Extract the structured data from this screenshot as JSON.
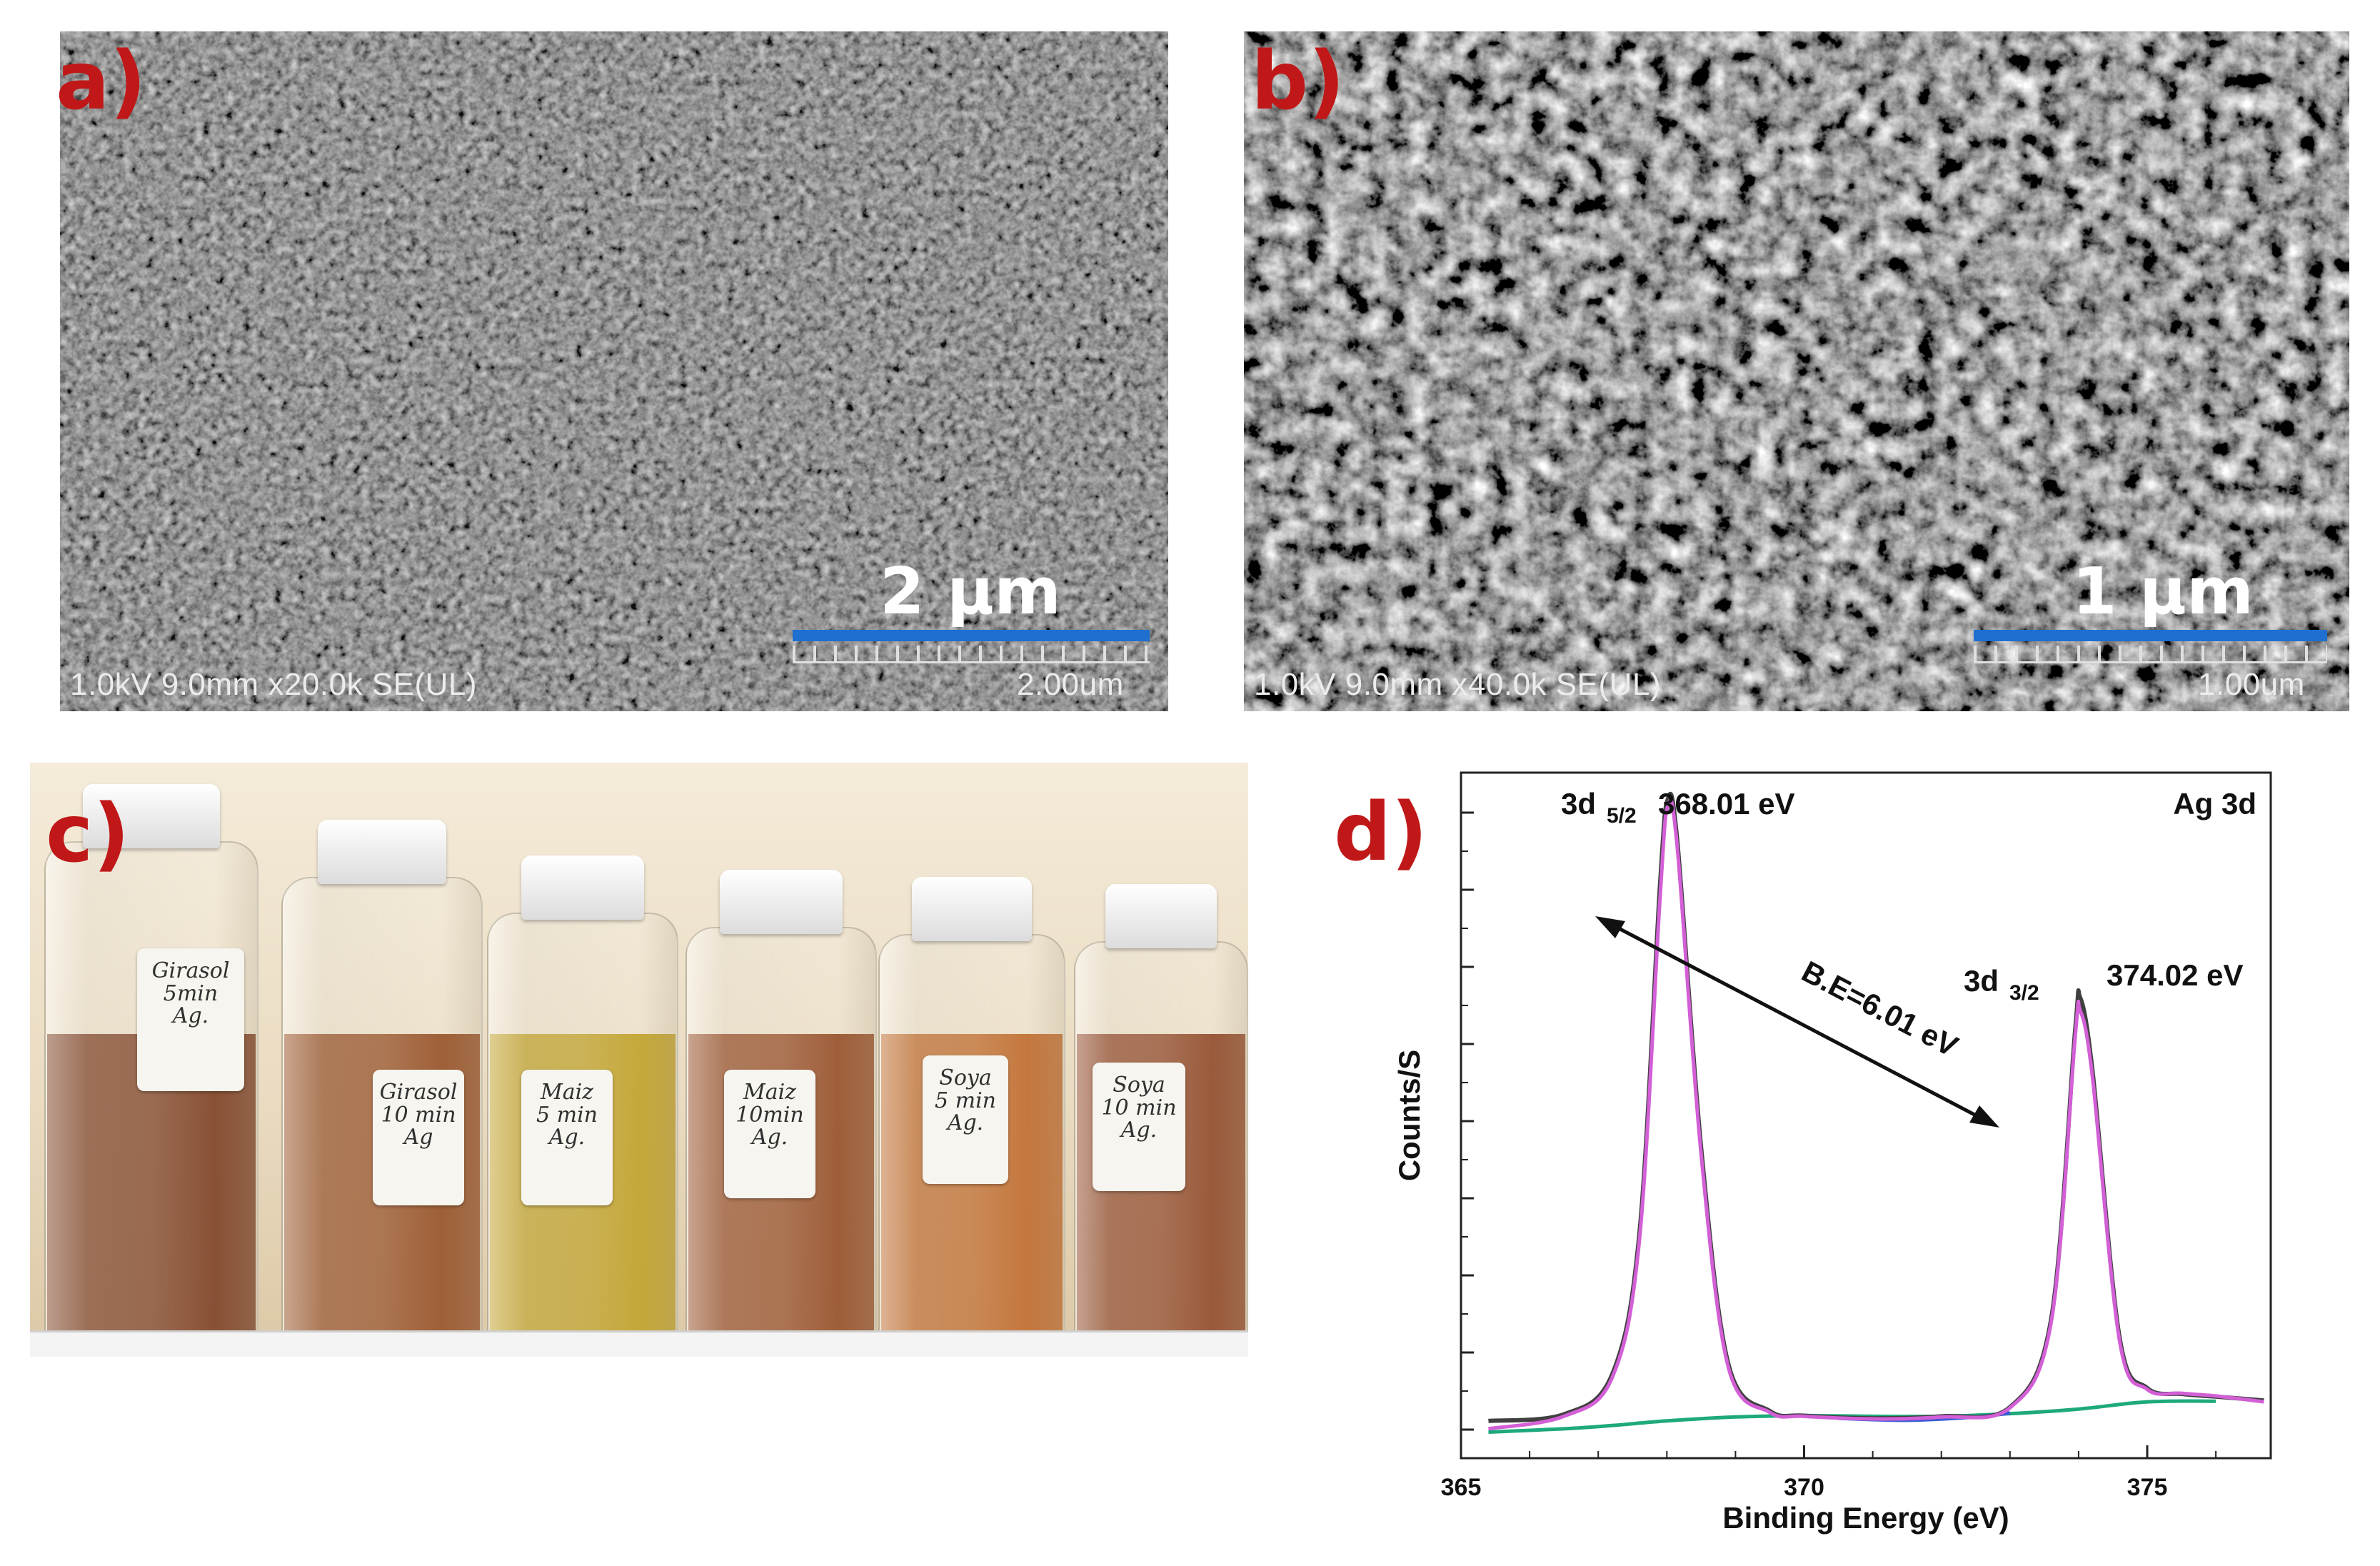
{
  "panels": {
    "a": {
      "letter": "a)",
      "info": "1.0kV 9.0mm x20.0k SE(UL)",
      "scale_label_large": "2 µm",
      "scale_label_small": "2.00um"
    },
    "b": {
      "letter": "b)",
      "info": "1.0kV 9.0mm x40.0k SE(UL)",
      "scale_label_large": "1 µm",
      "scale_label_small": "1.00um"
    },
    "c": {
      "letter": "c)",
      "vials": [
        {
          "line1": "Girasol",
          "line2": "5min",
          "line3": "Ag.",
          "liquid": "#6e2a0a"
        },
        {
          "line1": "Girasol",
          "line2": "10 min",
          "line3": "Ag",
          "liquid": "#8a3c0c"
        },
        {
          "line1": "Maiz",
          "line2": "5 min",
          "line3": "Ag.",
          "liquid": "#b9960f"
        },
        {
          "line1": "Maiz",
          "line2": "10min",
          "line3": "Ag.",
          "liquid": "#8a3a0f"
        },
        {
          "line1": "Soya",
          "line2": "5 min",
          "line3": "Ag.",
          "liquid": "#b85a14"
        },
        {
          "line1": "Soya",
          "line2": "10 min",
          "line3": "Ag.",
          "liquid": "#843410"
        }
      ]
    },
    "d": {
      "letter": "d)",
      "title": "Ag 3d",
      "peak1_label": "3d",
      "peak1_sub": "5/2",
      "peak1_value": "368.01 eV",
      "peak2_label": "3d",
      "peak2_sub": "3/2",
      "peak2_value": "374.02 eV",
      "arrow_label": "B.E=6.01 eV"
    }
  },
  "chart_data": {
    "type": "line",
    "title": "Ag 3d",
    "xlabel": "Binding Energy (eV)",
    "ylabel": "Counts/S",
    "xlim": [
      365,
      376.8
    ],
    "ylim": [
      0,
      100
    ],
    "xticks": [
      365,
      370,
      375
    ],
    "grid": false,
    "peaks": [
      {
        "position": 368.01,
        "label": "3d 5/2",
        "value_label": "368.01 eV",
        "height": 98
      },
      {
        "position": 374.02,
        "label": "3d 3/2",
        "value_label": "374.02 eV",
        "height": 68
      }
    ],
    "annotation": "B.E=6.01 eV",
    "series": [
      {
        "color": "#404040",
        "values": [
          [
            365.4,
            3.5
          ],
          [
            366.5,
            4.5
          ],
          [
            367.2,
            10.5
          ],
          [
            367.6,
            32
          ],
          [
            367.9,
            85
          ],
          [
            368.01,
            98
          ],
          [
            368.15,
            92
          ],
          [
            368.5,
            45
          ],
          [
            368.9,
            12
          ],
          [
            369.5,
            5
          ],
          [
            370.0,
            4.3
          ],
          [
            371.0,
            3.9
          ],
          [
            372.0,
            4.2
          ],
          [
            373.0,
            5.6
          ],
          [
            373.6,
            19
          ],
          [
            373.95,
            63
          ],
          [
            374.02,
            68
          ],
          [
            374.2,
            57
          ],
          [
            374.6,
            16
          ],
          [
            375.0,
            8.5
          ],
          [
            375.5,
            7.6
          ],
          [
            376.0,
            7.2
          ],
          [
            376.7,
            6.6
          ]
        ]
      },
      {
        "color": "#d35fd7",
        "values": [
          [
            365.4,
            2.3
          ],
          [
            366.5,
            4.2
          ],
          [
            367.2,
            10
          ],
          [
            367.6,
            31
          ],
          [
            367.9,
            83
          ],
          [
            368.01,
            97
          ],
          [
            368.15,
            91
          ],
          [
            368.5,
            44
          ],
          [
            368.9,
            11.5
          ],
          [
            369.5,
            4.8
          ],
          [
            370.0,
            4.2
          ],
          [
            371.0,
            3.8
          ],
          [
            372.0,
            4.1
          ],
          [
            373.0,
            5.5
          ],
          [
            373.6,
            18.5
          ],
          [
            373.95,
            62
          ],
          [
            374.02,
            66
          ],
          [
            374.2,
            56
          ],
          [
            374.6,
            15.5
          ],
          [
            375.0,
            8.3
          ],
          [
            375.5,
            7.7
          ],
          [
            376.0,
            7.3
          ],
          [
            376.7,
            6.4
          ]
        ]
      },
      {
        "color": "#1ea97d",
        "values": [
          [
            365.4,
            1.8
          ],
          [
            366.5,
            2.3
          ],
          [
            367.2,
            2.8
          ],
          [
            368.0,
            3.5
          ],
          [
            369.0,
            4.1
          ],
          [
            370.0,
            4.3
          ],
          [
            371.0,
            4.2
          ],
          [
            372.0,
            4.2
          ],
          [
            373.0,
            4.6
          ],
          [
            374.0,
            5.3
          ],
          [
            375.0,
            6.4
          ],
          [
            376.0,
            6.5
          ]
        ]
      },
      {
        "color": "#3b5bd6",
        "values": [
          [
            370.5,
            3.9
          ],
          [
            371.5,
            3.6
          ],
          [
            372.5,
            4.1
          ],
          [
            373.0,
            4.7
          ]
        ]
      }
    ]
  }
}
